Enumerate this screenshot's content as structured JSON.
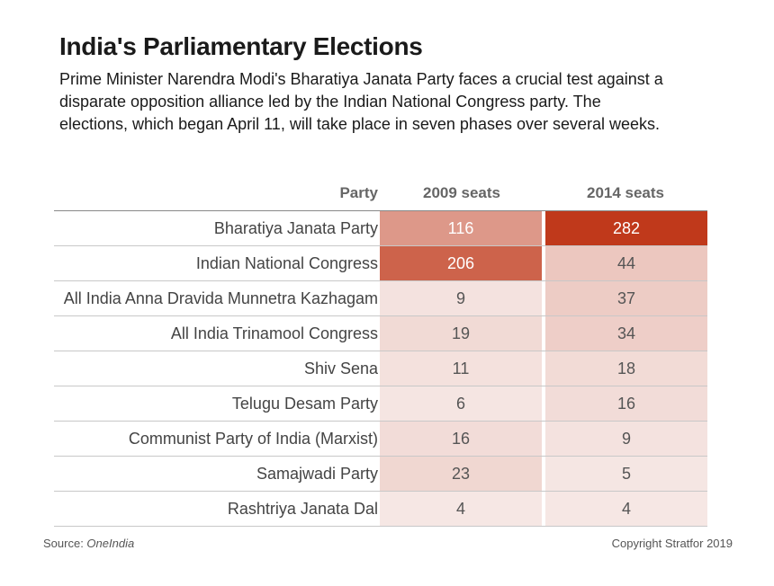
{
  "title": "India's Parliamentary Elections",
  "subtitle": "Prime Minister Narendra Modi's Bharatiya Janata Party faces a crucial test against a disparate opposition alliance led by the Indian National Congress party. The elections, which began April 11, will take place in seven phases over several weeks.",
  "footer": {
    "source_label": "Source: ",
    "source_name": "OneIndia",
    "copyright": "Copyright Stratfor 2019"
  },
  "colors": {
    "heat_max": "#c0391b",
    "heat_min": "#f7ecea"
  },
  "chart_data": {
    "type": "heatmap",
    "columns": [
      "Party",
      "2009 seats",
      "2014 seats"
    ],
    "categories": [
      "Bharatiya Janata Party",
      "Indian National Congress",
      "All India Anna Dravida Munnetra Kazhagam",
      "All India Trinamool Congress",
      "Shiv Sena",
      "Telugu Desam Party",
      "Communist Party of India (Marxist)",
      "Samajwadi Party",
      "Rashtriya Janata Dal"
    ],
    "series": [
      {
        "name": "2009 seats",
        "values": [
          116,
          206,
          9,
          19,
          11,
          6,
          16,
          23,
          4
        ]
      },
      {
        "name": "2014 seats",
        "values": [
          282,
          44,
          37,
          34,
          18,
          16,
          9,
          5,
          4
        ]
      }
    ]
  }
}
